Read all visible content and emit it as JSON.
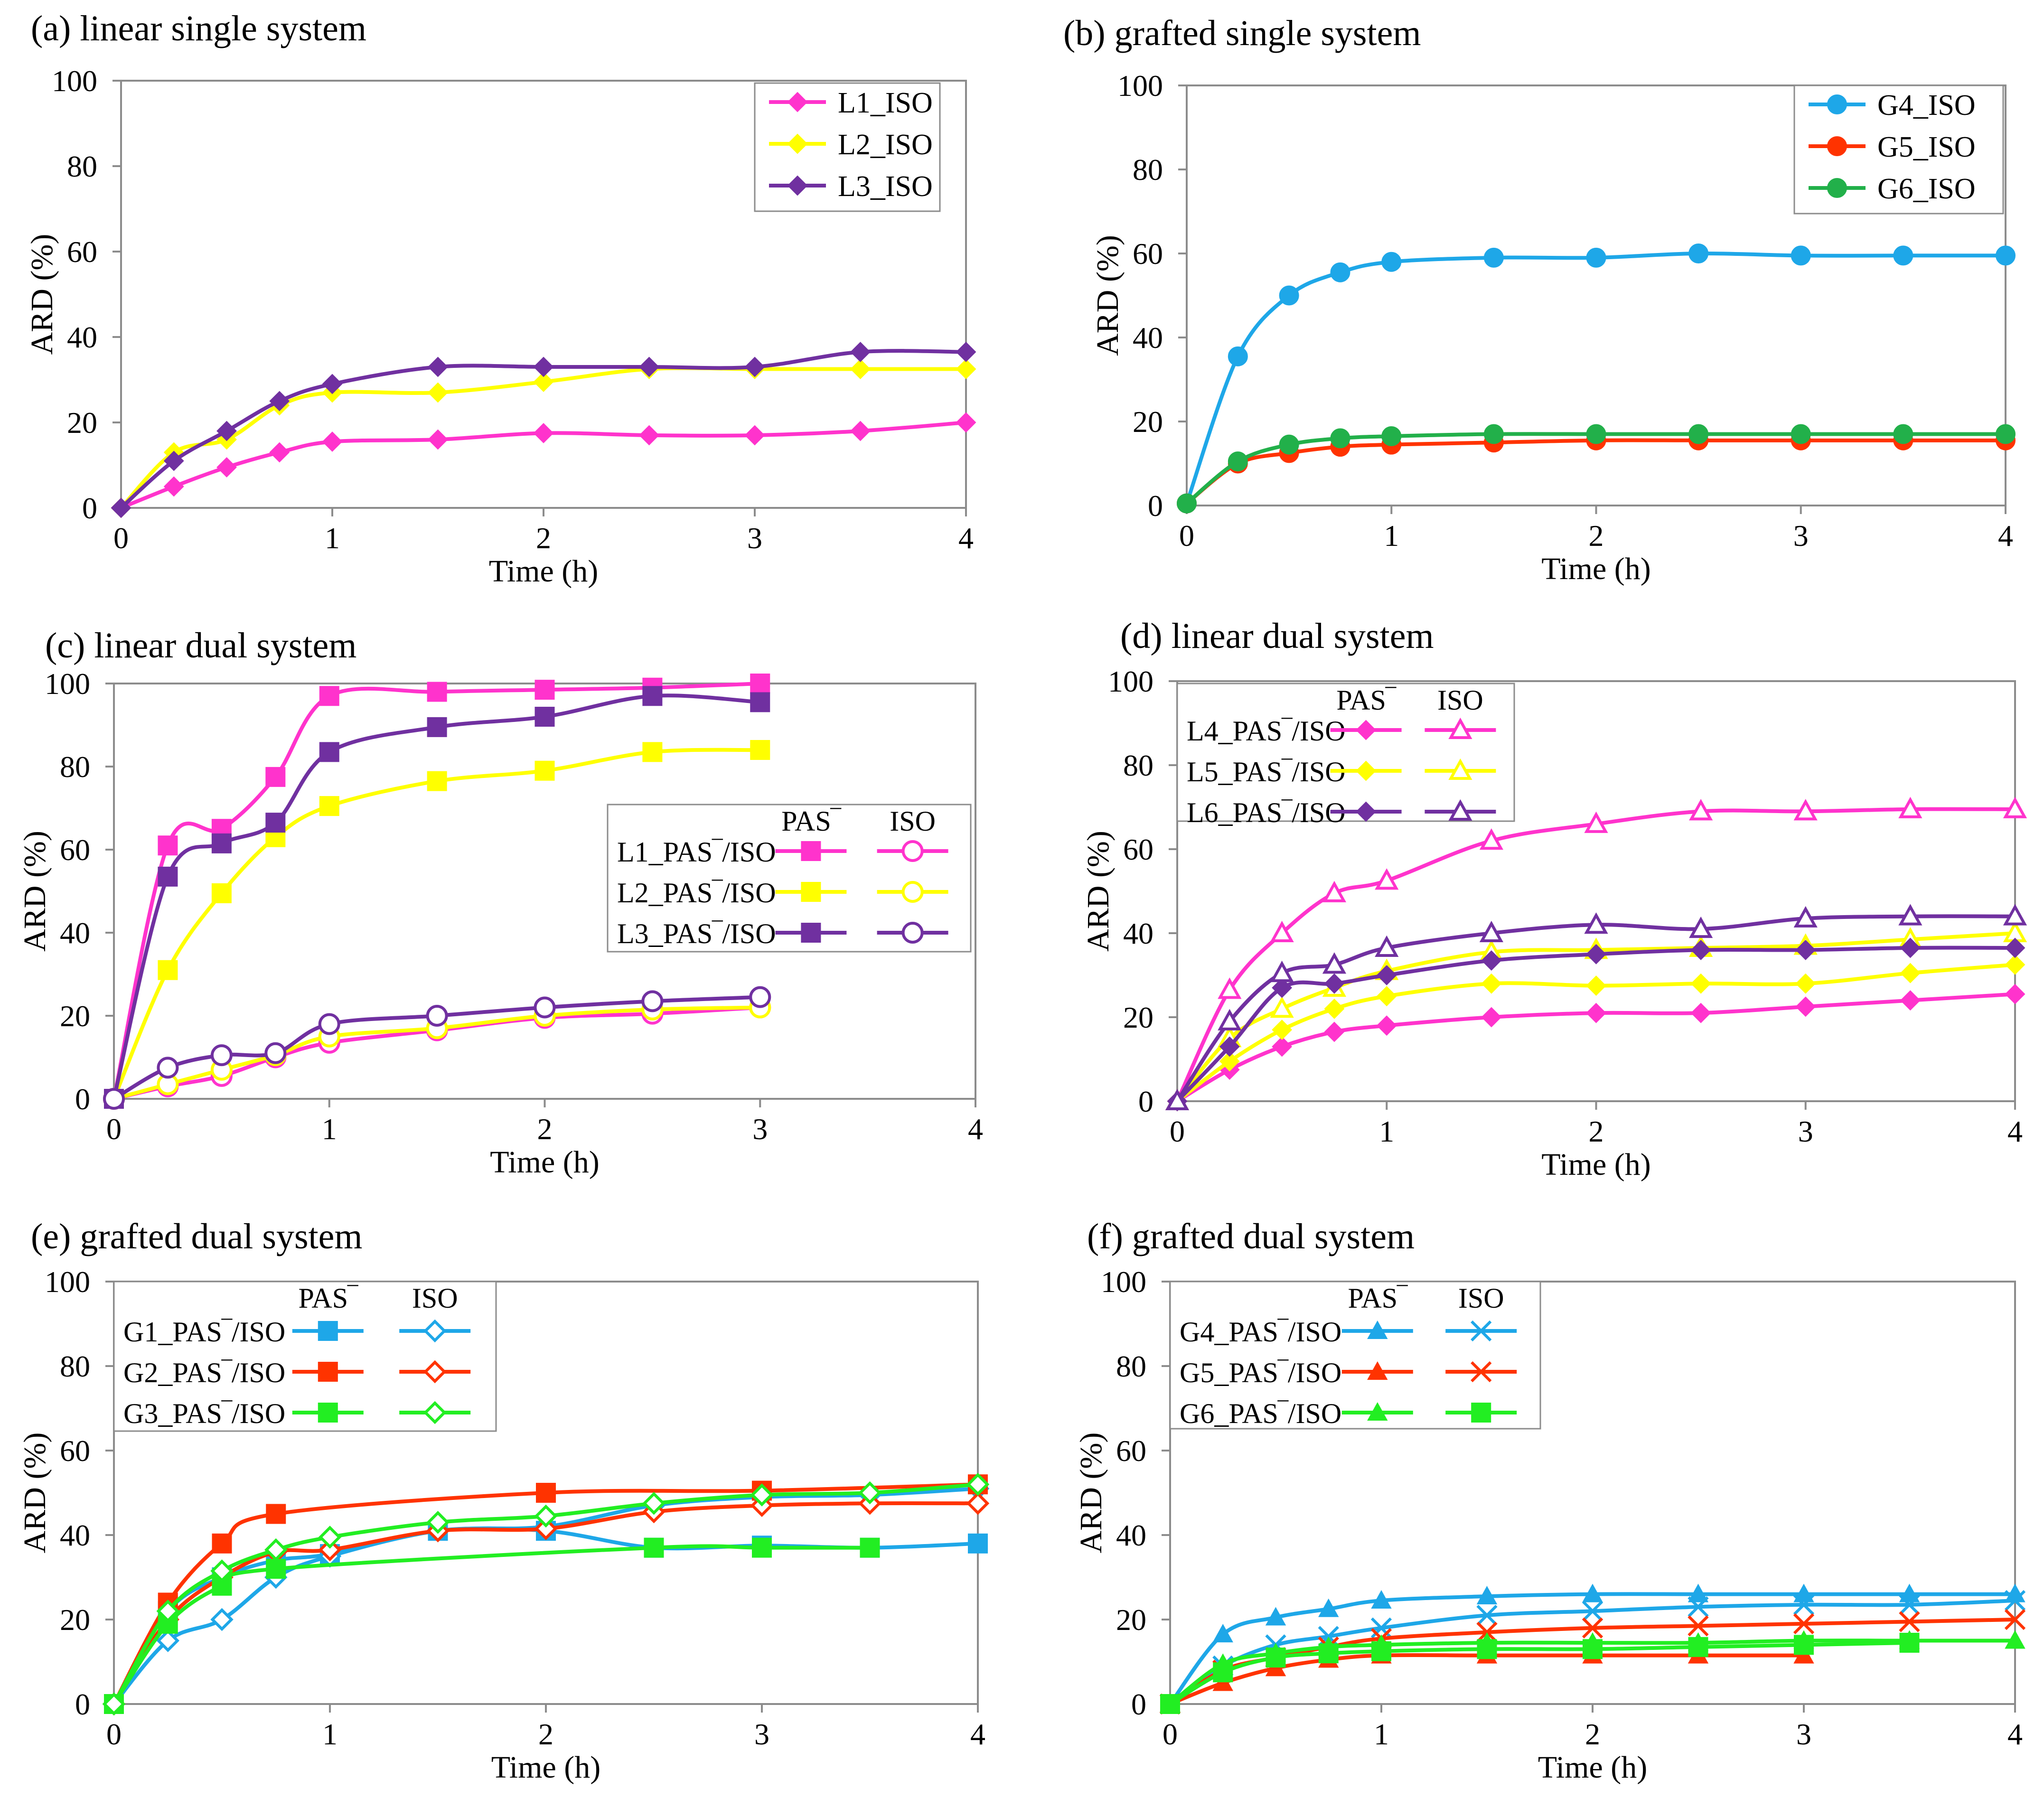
{
  "colors": {
    "magenta": "#ff33cc",
    "yellow": "#ffff00",
    "purple": "#7030a0",
    "blue": "#1ea7e8",
    "red": "#ff3300",
    "green": "#22b04a",
    "brightgreen": "#22ee22"
  },
  "chart_data": [
    {
      "panel": "a",
      "type": "line",
      "title": "(a) linear single system",
      "xlabel": "Time  (h)",
      "ylabel": "ARD (%)",
      "xlim": [
        0,
        4
      ],
      "ylim": [
        0,
        100
      ],
      "xticks": [
        "0",
        "1",
        "2",
        "3",
        "4"
      ],
      "yticks": [
        "0",
        "20",
        "40",
        "60",
        "80",
        "100"
      ],
      "legend": {
        "placement": "top-right",
        "headers": []
      },
      "series": [
        {
          "name": "L1_ISO",
          "color": "#ff33cc",
          "marker": "diamond",
          "fill": "filled",
          "x": [
            0,
            0.25,
            0.5,
            0.75,
            1,
            1.5,
            2,
            2.5,
            3,
            3.5,
            4
          ],
          "y": [
            0,
            5,
            9.5,
            13,
            15.5,
            16,
            17.5,
            17,
            17,
            18,
            20
          ]
        },
        {
          "name": "L2_ISO",
          "color": "#ffff00",
          "marker": "diamond",
          "fill": "filled",
          "x": [
            0,
            0.25,
            0.5,
            0.75,
            1,
            1.5,
            2,
            2.5,
            3,
            3.5,
            4
          ],
          "y": [
            0,
            13,
            16,
            24,
            27,
            27,
            29.5,
            32.5,
            32.5,
            32.5,
            32.5
          ]
        },
        {
          "name": "L3_ISO",
          "color": "#7030a0",
          "marker": "diamond",
          "fill": "filled",
          "x": [
            0,
            0.25,
            0.5,
            0.75,
            1,
            1.5,
            2,
            2.5,
            3,
            3.5,
            4
          ],
          "y": [
            0,
            11,
            18,
            25,
            29,
            33,
            33,
            33,
            33,
            36.5,
            36.5
          ]
        }
      ]
    },
    {
      "panel": "b",
      "type": "line",
      "title": "(b) grafted single system",
      "xlabel": "Time  (h)",
      "ylabel": "ARD (%)",
      "xlim": [
        0,
        4
      ],
      "ylim": [
        0,
        100
      ],
      "xticks": [
        "0",
        "1",
        "2",
        "3",
        "4"
      ],
      "yticks": [
        "0",
        "20",
        "40",
        "60",
        "80",
        "100"
      ],
      "legend": {
        "placement": "top-right",
        "headers": []
      },
      "series": [
        {
          "name": "G4_ISO",
          "color": "#1ea7e8",
          "marker": "circle",
          "fill": "filled",
          "x": [
            0,
            0.25,
            0.5,
            0.75,
            1,
            1.5,
            2,
            2.5,
            3,
            3.5,
            4
          ],
          "y": [
            0.5,
            35.5,
            50,
            55.5,
            58,
            59,
            59,
            60,
            59.5,
            59.5,
            59.5
          ]
        },
        {
          "name": "G5_ISO",
          "color": "#ff3300",
          "marker": "circle",
          "fill": "filled",
          "x": [
            0,
            0.25,
            0.5,
            0.75,
            1,
            1.5,
            2,
            2.5,
            3,
            3.5,
            4
          ],
          "y": [
            0.5,
            10,
            12.5,
            14,
            14.5,
            15,
            15.5,
            15.5,
            15.5,
            15.5,
            15.5
          ]
        },
        {
          "name": "G6_ISO",
          "color": "#22b04a",
          "marker": "circle",
          "fill": "filled",
          "x": [
            0,
            0.25,
            0.5,
            0.75,
            1,
            1.5,
            2,
            2.5,
            3,
            3.5,
            4
          ],
          "y": [
            0.5,
            10.5,
            14.5,
            16,
            16.5,
            17,
            17,
            17,
            17,
            17,
            17
          ]
        }
      ]
    },
    {
      "panel": "c",
      "type": "line",
      "title": "(c) linear dual system",
      "xlabel": "Time  (h)",
      "ylabel": "ARD (%)",
      "xlim": [
        0,
        4
      ],
      "ylim": [
        0,
        100
      ],
      "xticks": [
        "0",
        "1",
        "2",
        "3",
        "4"
      ],
      "yticks": [
        "0",
        "20",
        "40",
        "60",
        "80",
        "100"
      ],
      "legend": {
        "placement": "right",
        "headers": [
          "PAS‾",
          "ISO"
        ]
      },
      "series": [
        {
          "name": "L1_PAS‾/ISO",
          "color": "#ff33cc",
          "marker": "square",
          "fill": "filled",
          "x": [
            0,
            0.25,
            0.5,
            0.75,
            1,
            1.5,
            2,
            2.5,
            3
          ],
          "y": [
            0,
            61,
            65,
            77.5,
            97,
            98,
            98.5,
            99,
            100
          ]
        },
        {
          "name": "",
          "color": "#ff33cc",
          "marker": "circle",
          "fill": "open",
          "x": [
            0,
            0.25,
            0.5,
            0.75,
            1,
            1.5,
            2,
            2.5,
            3
          ],
          "y": [
            0,
            3,
            5.5,
            10,
            13.5,
            16.5,
            19.5,
            20.5,
            22
          ]
        },
        {
          "name": "L2_PAS‾/ISO",
          "color": "#ffff00",
          "marker": "square",
          "fill": "filled",
          "x": [
            0,
            0.25,
            0.5,
            0.75,
            1,
            1.5,
            2,
            2.5,
            3
          ],
          "y": [
            0,
            31,
            49.5,
            63,
            70.5,
            76.5,
            79,
            83.5,
            84
          ]
        },
        {
          "name": "",
          "color": "#ffff00",
          "marker": "circle",
          "fill": "open",
          "x": [
            0,
            0.25,
            0.5,
            0.75,
            1,
            1.5,
            2,
            2.5,
            3
          ],
          "y": [
            0,
            3.5,
            7,
            10.5,
            15,
            17,
            20,
            21.5,
            22
          ]
        },
        {
          "name": "L3_PAS‾/ISO",
          "color": "#7030a0",
          "marker": "square",
          "fill": "filled",
          "x": [
            0,
            0.25,
            0.5,
            0.75,
            1,
            1.5,
            2,
            2.5,
            3
          ],
          "y": [
            0,
            53.5,
            61.5,
            66.5,
            83.5,
            89.5,
            92,
            97,
            95.5
          ]
        },
        {
          "name": "",
          "color": "#7030a0",
          "marker": "circle",
          "fill": "open",
          "x": [
            0,
            0.25,
            0.5,
            0.75,
            1,
            1.5,
            2,
            2.5,
            3
          ],
          "y": [
            0,
            7.5,
            10.5,
            11,
            18,
            20,
            22,
            23.5,
            24.5
          ]
        }
      ]
    },
    {
      "panel": "d",
      "type": "line",
      "title": "(d)  linear dual system",
      "xlabel": "Time  (h)",
      "ylabel": "ARD (%)",
      "xlim": [
        0,
        4
      ],
      "ylim": [
        0,
        100
      ],
      "xticks": [
        "0",
        "1",
        "2",
        "3",
        "4"
      ],
      "yticks": [
        "0",
        "20",
        "40",
        "60",
        "80",
        "100"
      ],
      "legend": {
        "placement": "top-left",
        "headers": [
          "PAS‾",
          "ISO"
        ]
      },
      "series": [
        {
          "name": "L4_PAS‾/ISO",
          "color": "#ff33cc",
          "marker": "diamond",
          "fill": "filled",
          "x": [
            0,
            0.25,
            0.5,
            0.75,
            1,
            1.5,
            2,
            2.5,
            3,
            3.5,
            4
          ],
          "y": [
            0,
            7.5,
            13,
            16.5,
            18,
            20,
            21,
            21,
            22.5,
            24,
            25.5
          ]
        },
        {
          "name": "",
          "color": "#ff33cc",
          "marker": "triangle",
          "fill": "open",
          "x": [
            0,
            0.25,
            0.5,
            0.75,
            1,
            1.5,
            2,
            2.5,
            3,
            3.5,
            4
          ],
          "y": [
            0,
            26.5,
            40,
            49.5,
            52.5,
            62,
            66,
            69,
            69,
            69.5,
            69.5
          ]
        },
        {
          "name": "L5_PAS‾/ISO",
          "color": "#ffff00",
          "marker": "diamond",
          "fill": "filled",
          "x": [
            0,
            0.25,
            0.5,
            0.75,
            1,
            1.5,
            2,
            2.5,
            3,
            3.5,
            4
          ],
          "y": [
            0,
            9.5,
            17,
            22,
            25,
            28,
            27.5,
            28,
            28,
            30.5,
            32.5
          ]
        },
        {
          "name": "",
          "color": "#ffff00",
          "marker": "triangle",
          "fill": "open",
          "x": [
            0,
            0.25,
            0.5,
            0.75,
            1,
            1.5,
            2,
            2.5,
            3,
            3.5,
            4
          ],
          "y": [
            0,
            15,
            22,
            27,
            31,
            35.5,
            36,
            36.5,
            37,
            38.5,
            40
          ]
        },
        {
          "name": "L6_PAS‾/ISO",
          "color": "#7030a0",
          "marker": "diamond",
          "fill": "filled",
          "x": [
            0,
            0.25,
            0.5,
            0.75,
            1,
            1.5,
            2,
            2.5,
            3,
            3.5,
            4
          ],
          "y": [
            0,
            13,
            27,
            28,
            30,
            33.5,
            35,
            36,
            36,
            36.5,
            36.5
          ]
        },
        {
          "name": "",
          "color": "#7030a0",
          "marker": "triangle",
          "fill": "open",
          "x": [
            0,
            0.25,
            0.5,
            0.75,
            1,
            1.5,
            2,
            2.5,
            3,
            3.5,
            4
          ],
          "y": [
            0,
            19,
            30.5,
            32.5,
            36.5,
            40,
            42,
            41,
            43.5,
            44,
            44
          ]
        }
      ]
    },
    {
      "panel": "e",
      "type": "line",
      "title": "(e)  grafted dual system",
      "xlabel": "Time  (h)",
      "ylabel": "ARD (%)",
      "xlim": [
        0,
        4
      ],
      "ylim": [
        0,
        100
      ],
      "xticks": [
        "0",
        "1",
        "2",
        "3",
        "4"
      ],
      "yticks": [
        "0",
        "20",
        "40",
        "60",
        "80",
        "100"
      ],
      "legend": {
        "placement": "top-left",
        "headers": [
          "PAS‾",
          "ISO"
        ]
      },
      "series": [
        {
          "name": "G1_PAS‾/ISO",
          "color": "#1ea7e8",
          "marker": "square",
          "fill": "filled",
          "x": [
            0,
            0.25,
            0.5,
            0.75,
            1,
            1.5,
            2,
            2.5,
            3,
            3.5,
            4
          ],
          "y": [
            0,
            22,
            30,
            34,
            35.5,
            41,
            41,
            37,
            37.5,
            37,
            38
          ]
        },
        {
          "name": "",
          "color": "#1ea7e8",
          "marker": "diamond",
          "fill": "open",
          "x": [
            0,
            0.25,
            0.5,
            0.75,
            1,
            1.5,
            2,
            2.5,
            3,
            3.5,
            4
          ],
          "y": [
            0,
            15,
            20,
            30,
            35,
            41,
            42,
            47,
            49,
            49.5,
            51
          ]
        },
        {
          "name": "G2_PAS‾/ISO",
          "color": "#ff3300",
          "marker": "square",
          "fill": "filled",
          "x": [
            0,
            0.25,
            0.5,
            0.75,
            2,
            3,
            4
          ],
          "y": [
            0,
            24,
            38,
            45,
            50,
            50.5,
            52
          ]
        },
        {
          "name": "",
          "color": "#ff3300",
          "marker": "diamond",
          "fill": "open",
          "x": [
            0,
            0.25,
            0.5,
            0.75,
            1,
            1.5,
            2,
            2.5,
            3,
            3.5,
            4
          ],
          "y": [
            0,
            20,
            30,
            36,
            36.5,
            41,
            41.5,
            45.5,
            47,
            47.5,
            47.5
          ]
        },
        {
          "name": "G3_PAS‾/ISO",
          "color": "#22ee22",
          "marker": "square",
          "fill": "filled",
          "x": [
            0,
            0.25,
            0.5,
            0.75,
            2.5,
            3,
            3.5
          ],
          "y": [
            0,
            19,
            28,
            32,
            37,
            37,
            37
          ]
        },
        {
          "name": "",
          "color": "#22ee22",
          "marker": "diamond",
          "fill": "open",
          "x": [
            0,
            0.25,
            0.5,
            0.75,
            1,
            1.5,
            2,
            2.5,
            3,
            3.5,
            4
          ],
          "y": [
            0,
            22,
            31.5,
            36.5,
            39.5,
            43,
            44.5,
            47.5,
            49.5,
            50,
            52
          ]
        }
      ]
    },
    {
      "panel": "f",
      "type": "line",
      "title": "(f) grafted dual system",
      "xlabel": "Time  (h)",
      "ylabel": "ARD (%)",
      "xlim": [
        0,
        4
      ],
      "ylim": [
        0,
        100
      ],
      "xticks": [
        "0",
        "1",
        "2",
        "3",
        "4"
      ],
      "yticks": [
        "0",
        "20",
        "40",
        "60",
        "80",
        "100"
      ],
      "legend": {
        "placement": "top-left",
        "headers": [
          "PAS‾",
          "ISO"
        ]
      },
      "series": [
        {
          "name": "G4_PAS‾/ISO",
          "color": "#1ea7e8",
          "marker": "triangle",
          "fill": "filled",
          "x": [
            0,
            0.25,
            0.5,
            0.75,
            1,
            1.5,
            2,
            2.5,
            3,
            3.5,
            4
          ],
          "y": [
            0,
            16.5,
            20.5,
            22.5,
            24.5,
            25.5,
            26,
            26,
            26,
            26,
            26
          ]
        },
        {
          "name": "",
          "color": "#1ea7e8",
          "marker": "x",
          "fill": "open",
          "x": [
            0,
            0.25,
            0.5,
            0.75,
            1,
            1.5,
            2,
            2.5,
            3,
            3.5,
            4
          ],
          "y": [
            0,
            9,
            14,
            16,
            18,
            21,
            22,
            23,
            23.5,
            23.5,
            24.5
          ]
        },
        {
          "name": "G5_PAS‾/ISO",
          "color": "#ff3300",
          "marker": "triangle",
          "fill": "filled",
          "x": [
            0,
            0.25,
            0.5,
            0.75,
            1,
            1.5,
            2,
            2.5,
            3
          ],
          "y": [
            0,
            5,
            8.5,
            10.5,
            11.5,
            11.5,
            11.5,
            11.5,
            11.5
          ]
        },
        {
          "name": "",
          "color": "#ff3300",
          "marker": "x",
          "fill": "open",
          "x": [
            0,
            0.25,
            0.5,
            0.75,
            1,
            1.5,
            2,
            2.5,
            3,
            3.5,
            4
          ],
          "y": [
            0,
            8,
            11,
            13.5,
            15.5,
            17,
            18,
            18.5,
            19,
            19.5,
            20
          ]
        },
        {
          "name": "G6_PAS‾/ISO",
          "color": "#22ee22",
          "marker": "triangle",
          "fill": "filled",
          "x": [
            0,
            0.25,
            0.5,
            0.75,
            1,
            1.5,
            2,
            2.5,
            3,
            3.5,
            4
          ],
          "y": [
            0,
            9.5,
            12,
            13.5,
            14,
            14.5,
            14.5,
            14.5,
            15,
            15,
            15
          ]
        },
        {
          "name": "",
          "color": "#22ee22",
          "marker": "square",
          "fill": "filled",
          "x": [
            0,
            0.25,
            0.5,
            0.75,
            1,
            1.5,
            2,
            2.5,
            3,
            3.5
          ],
          "y": [
            0,
            7.5,
            11,
            12,
            12.5,
            13,
            13,
            13.5,
            14,
            14.5
          ]
        }
      ]
    }
  ]
}
